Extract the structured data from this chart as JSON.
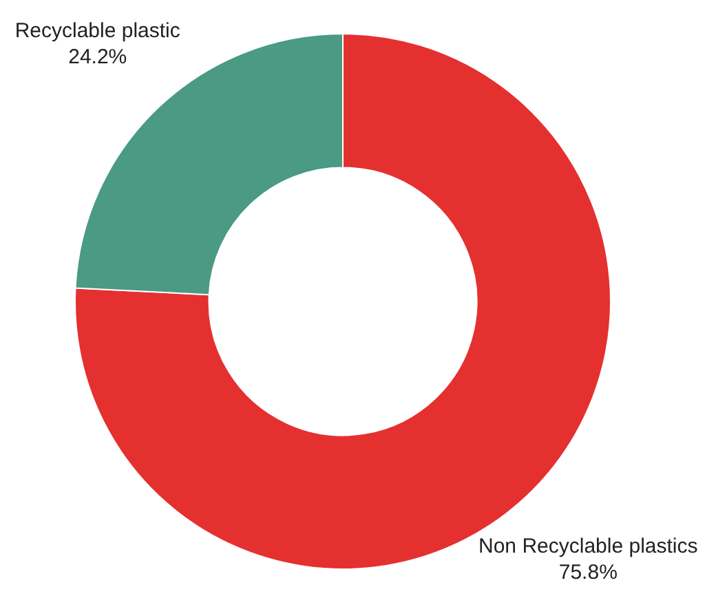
{
  "chart_data": {
    "type": "donut",
    "categories": [
      "Non Recyclable plastics",
      "Recyclable plastic"
    ],
    "values": [
      75.8,
      24.2
    ],
    "value_labels": [
      "75.8%",
      "24.2%"
    ],
    "colors": [
      "#e53030",
      "#4a9a84"
    ]
  }
}
